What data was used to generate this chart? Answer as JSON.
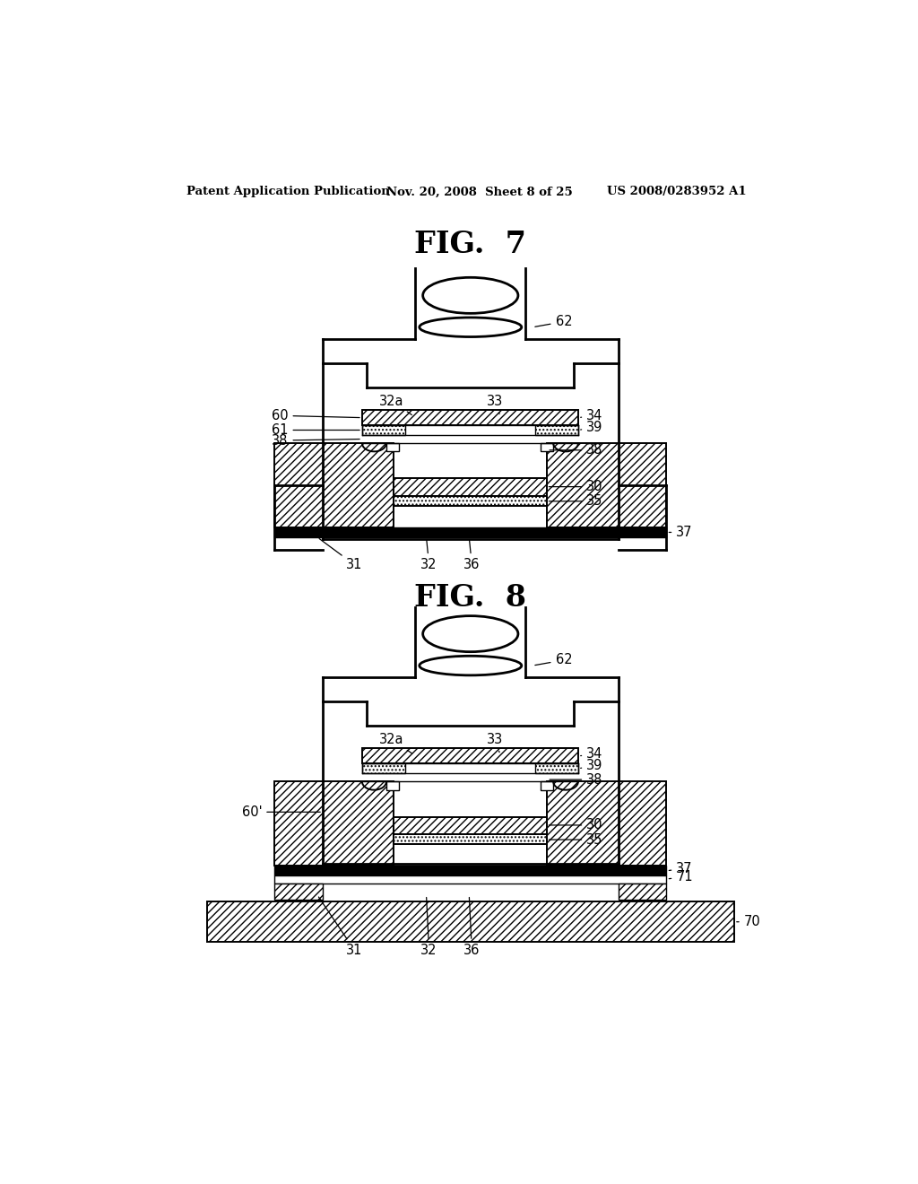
{
  "bg_color": "#ffffff",
  "header_left": "Patent Application Publication",
  "header_mid": "Nov. 20, 2008  Sheet 8 of 25",
  "header_right": "US 2008/0283952 A1",
  "fig7_title": "FIG.  7",
  "fig8_title": "FIG.  8"
}
